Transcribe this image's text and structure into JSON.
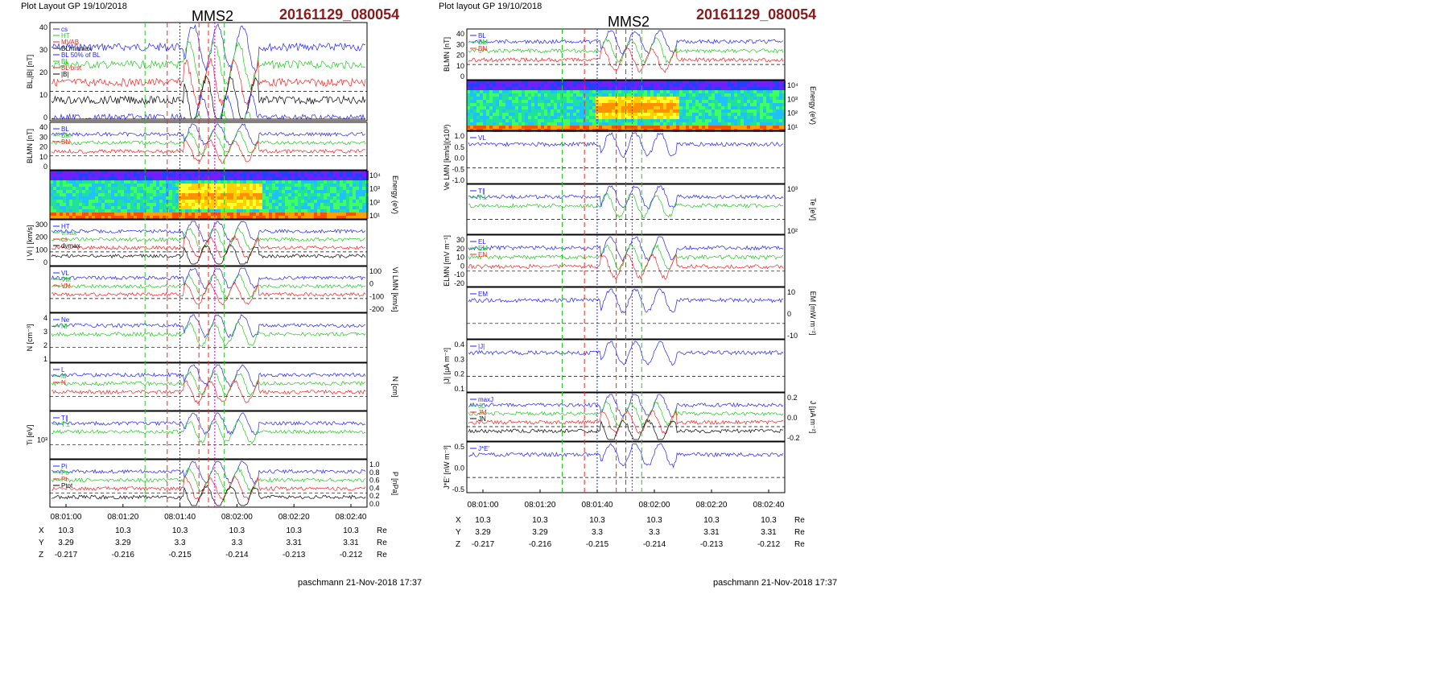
{
  "left_panel": {
    "header": "Plot Layout GP 19/10/2018",
    "title": "MMS2",
    "stamp": "20161129_080054",
    "footer": "paschmann 21-Nov-2018 17:37"
  },
  "right_panel": {
    "header": "Plot layout GP 19/10/2018",
    "title": "MMS2",
    "stamp": "20161129_080054",
    "footer": "paschmann 21-Nov-2018 17:37"
  },
  "colors": {
    "red": "#ff2020",
    "green": "#20cc20",
    "blue": "#2020ff",
    "black": "#000000",
    "stamp": "#8b1a1a"
  },
  "chart_data": [
    {
      "type": "line",
      "name": "left-figure",
      "xticks": [
        "08:01:00",
        "08:01:20",
        "08:01:40",
        "08:02:00",
        "08:02:20",
        "08:02:40"
      ],
      "position_table": {
        "rows": [
          {
            "label": "X",
            "values": [
              "10.3",
              "10.3",
              "10.3",
              "10.3",
              "10.3",
              "10.3"
            ],
            "unit": "Re"
          },
          {
            "label": "Y",
            "values": [
              "3.29",
              "3.29",
              "3.3",
              "3.3",
              "3.31",
              "3.31"
            ],
            "unit": "Re"
          },
          {
            "label": "Z",
            "values": [
              "-0.217",
              "-0.216",
              "-0.215",
              "-0.214",
              "-0.213",
              "-0.212"
            ],
            "unit": "Re"
          }
        ]
      },
      "panels": [
        {
          "id": "bl",
          "ylabel": "BL,|B| [nT]",
          "yticks": [
            "40",
            "30",
            "20",
            "10",
            "0"
          ],
          "legend": [
            "cs",
            "HT",
            "MVAB",
            "BLminmax",
            "BL 50% of BL",
            "BL",
            "BL brst",
            "|B|"
          ]
        },
        {
          "id": "blmn",
          "ylabel": "BLMN [nT]",
          "yticks": [
            "40",
            "30",
            "20",
            "10",
            "0"
          ],
          "legend": [
            "BL",
            "BM",
            "BN"
          ]
        },
        {
          "id": "espec",
          "ylabel": "Energy (eV)",
          "yticks": [
            "10⁴",
            "10³",
            "10²",
            "10¹"
          ]
        },
        {
          "id": "vi",
          "ylabel": "| Vi | [km/s]",
          "yticks": [
            "300",
            "200",
            "100",
            "0"
          ],
          "legend": [
            "HT",
            "vmax",
            "cs",
            "dvmax"
          ]
        },
        {
          "id": "vlmn",
          "ylabel": "Vi LMN [km/s]",
          "yticks": [
            "100",
            "0",
            "-100",
            "-200"
          ],
          "legend": [
            "VL",
            "VM",
            "VN"
          ]
        },
        {
          "id": "n",
          "ylabel": "N [cm⁻³]",
          "yticks": [
            "4",
            "3",
            "2",
            "1"
          ],
          "legend": [
            "Ne",
            "Ni"
          ]
        },
        {
          "id": "nlmn",
          "ylabel": "N [cm]",
          "legend": [
            "L",
            "M",
            "N"
          ]
        },
        {
          "id": "ti",
          "ylabel": "Ti [eV]",
          "yticks": [
            "10³"
          ],
          "legend": [
            "T∥",
            "T⊥"
          ]
        },
        {
          "id": "p",
          "ylabel": "P [nPa]",
          "yticks": [
            "1.0",
            "0.8",
            "0.6",
            "0.4",
            "0.2",
            "0.0"
          ],
          "legend": [
            "Pi",
            "Pe",
            "Pt",
            "Ptot"
          ]
        }
      ]
    },
    {
      "type": "line",
      "name": "right-figure",
      "xticks": [
        "08:01:00",
        "08:01:20",
        "08:01:40",
        "08:02:00",
        "08:02:20",
        "08:02:40"
      ],
      "position_table": {
        "rows": [
          {
            "label": "X",
            "values": [
              "10.3",
              "10.3",
              "10.3",
              "10.3",
              "10.3",
              "10.3"
            ],
            "unit": "Re"
          },
          {
            "label": "Y",
            "values": [
              "3.29",
              "3.29",
              "3.3",
              "3.3",
              "3.31",
              "3.31"
            ],
            "unit": "Re"
          },
          {
            "label": "Z",
            "values": [
              "-0.217",
              "-0.216",
              "-0.215",
              "-0.214",
              "-0.213",
              "-0.212"
            ],
            "unit": "Re"
          }
        ]
      },
      "panels": [
        {
          "id": "blmn",
          "ylabel": "BLMN [nT]",
          "yticks": [
            "40",
            "30",
            "20",
            "10",
            "0"
          ],
          "legend": [
            "BL",
            "BM",
            "BN"
          ]
        },
        {
          "id": "espec",
          "ylabel": "Energy (eV)",
          "yticks": [
            "10⁴",
            "10³",
            "10²",
            "10¹"
          ]
        },
        {
          "id": "ve",
          "ylabel": "Ve LMN [km/s](x10³)",
          "yticks": [
            "1.0",
            "0.5",
            "0.0",
            "-0.5",
            "-1.0"
          ],
          "legend": [
            "VL"
          ]
        },
        {
          "id": "te",
          "ylabel": "Te [eV]",
          "yticks": [
            "10³",
            "10²"
          ],
          "legend": [
            "T∥",
            "T⊥"
          ]
        },
        {
          "id": "e",
          "ylabel": "ELMN [mV m⁻¹]",
          "yticks": [
            "30",
            "20",
            "10",
            "0",
            "-10",
            "-20"
          ],
          "legend": [
            "EL",
            "EM",
            "EN"
          ]
        },
        {
          "id": "em",
          "ylabel": "EM [mW m⁻²]",
          "yticks": [
            "10",
            "0",
            "-10"
          ],
          "legend": [
            "EM"
          ]
        },
        {
          "id": "j",
          "ylabel": "|J| [μA m⁻²]",
          "yticks": [
            "0.4",
            "0.3",
            "0.2",
            "0.1"
          ],
          "legend": [
            "|J|"
          ]
        },
        {
          "id": "jlmn",
          "ylabel": "J [μA m⁻²]",
          "yticks": [
            "0.2",
            "0.0",
            "-0.2"
          ],
          "legend": [
            "maxJ",
            "JL",
            "JM",
            "JN"
          ]
        },
        {
          "id": "je",
          "ylabel": "J*E' [nW m⁻³]",
          "yticks": [
            "0.5",
            "0.0",
            "-0.5"
          ],
          "legend": [
            "J*E'"
          ]
        }
      ]
    }
  ]
}
